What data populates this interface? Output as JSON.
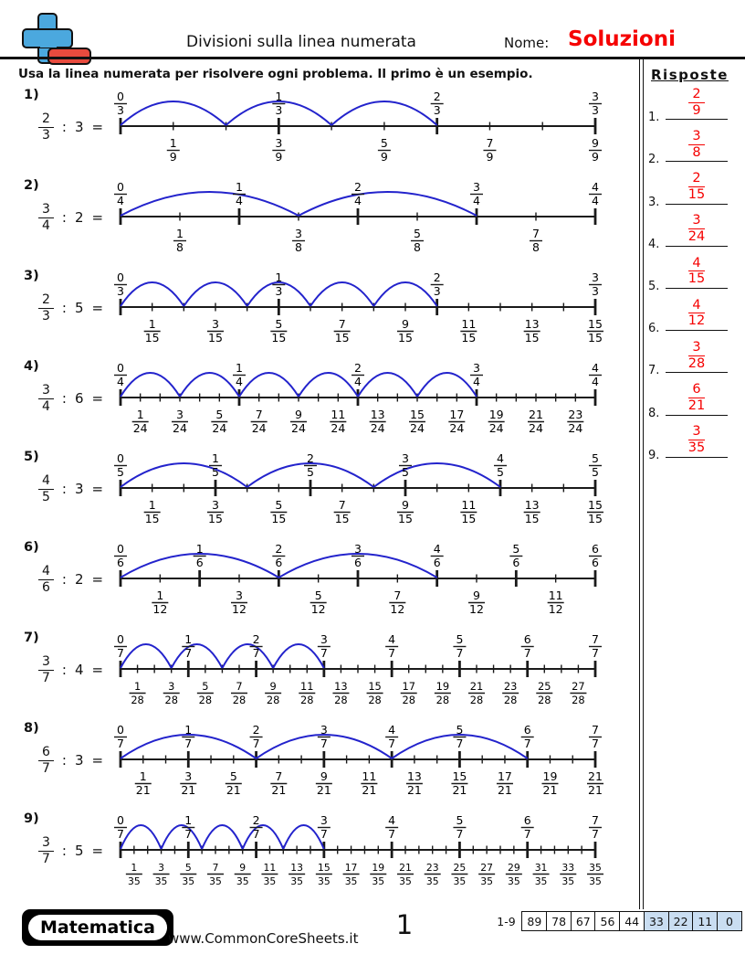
{
  "header": {
    "title": "Divisioni sulla linea numerata",
    "name_label": "Nome:",
    "name_value": "Soluzioni"
  },
  "instructions": "Usa la linea numerata per risolvere ogni problema. Il primo è un esempio.",
  "colors": {
    "arc_blue": "#2323cc",
    "answer_red": "#f50000",
    "score_highlight": "#c9ddf1",
    "logo_plus_blue": "#4ba8de",
    "logo_minus_red": "#e84b3e"
  },
  "problems": [
    {
      "label": "1)",
      "num": "2",
      "den": "3",
      "colon": ":",
      "divisor": "3",
      "equals": "=",
      "sub": 9,
      "hops": 3,
      "span": 2,
      "top": [
        "0/3",
        "1/3",
        "2/3",
        "3/3"
      ],
      "bottom": [
        "1/9",
        "3/9",
        "5/9",
        "7/9",
        "9/9"
      ]
    },
    {
      "label": "2)",
      "num": "3",
      "den": "4",
      "colon": ":",
      "divisor": "2",
      "equals": "=",
      "sub": 8,
      "hops": 2,
      "span": 3,
      "top": [
        "0/4",
        "1/4",
        "2/4",
        "3/4",
        "4/4"
      ],
      "bottom": [
        "1/8",
        "3/8",
        "5/8",
        "7/8"
      ]
    },
    {
      "label": "3)",
      "num": "2",
      "den": "3",
      "colon": ":",
      "divisor": "5",
      "equals": "=",
      "sub": 15,
      "hops": 5,
      "span": 2,
      "top": [
        "0/3",
        "1/3",
        "2/3",
        "3/3"
      ],
      "bottom": [
        "1/15",
        "3/15",
        "5/15",
        "7/15",
        "9/15",
        "11/15",
        "13/15",
        "15/15"
      ]
    },
    {
      "label": "4)",
      "num": "3",
      "den": "4",
      "colon": ":",
      "divisor": "6",
      "equals": "=",
      "sub": 24,
      "hops": 6,
      "span": 3,
      "top": [
        "0/4",
        "1/4",
        "2/4",
        "3/4",
        "4/4"
      ],
      "bottom": [
        "1/24",
        "3/24",
        "5/24",
        "7/24",
        "9/24",
        "11/24",
        "13/24",
        "15/24",
        "17/24",
        "19/24",
        "21/24",
        "23/24"
      ]
    },
    {
      "label": "5)",
      "num": "4",
      "den": "5",
      "colon": ":",
      "divisor": "3",
      "equals": "=",
      "sub": 15,
      "hops": 3,
      "span": 4,
      "top": [
        "0/5",
        "1/5",
        "2/5",
        "3/5",
        "4/5",
        "5/5"
      ],
      "bottom": [
        "1/15",
        "3/15",
        "5/15",
        "7/15",
        "9/15",
        "11/15",
        "13/15",
        "15/15"
      ]
    },
    {
      "label": "6)",
      "num": "4",
      "den": "6",
      "colon": ":",
      "divisor": "2",
      "equals": "=",
      "sub": 12,
      "hops": 2,
      "span": 4,
      "top": [
        "0/6",
        "1/6",
        "2/6",
        "3/6",
        "4/6",
        "5/6",
        "6/6"
      ],
      "bottom": [
        "1/12",
        "3/12",
        "5/12",
        "7/12",
        "9/12",
        "11/12"
      ]
    },
    {
      "label": "7)",
      "num": "3",
      "den": "7",
      "colon": ":",
      "divisor": "4",
      "equals": "=",
      "sub": 28,
      "hops": 4,
      "span": 3,
      "top": [
        "0/7",
        "1/7",
        "2/7",
        "3/7",
        "4/7",
        "5/7",
        "6/7",
        "7/7"
      ],
      "bottom": [
        "1/28",
        "3/28",
        "5/28",
        "7/28",
        "9/28",
        "11/28",
        "13/28",
        "15/28",
        "17/28",
        "19/28",
        "21/28",
        "23/28",
        "25/28",
        "27/28"
      ]
    },
    {
      "label": "8)",
      "num": "6",
      "den": "7",
      "colon": ":",
      "divisor": "3",
      "equals": "=",
      "sub": 21,
      "hops": 3,
      "span": 6,
      "top": [
        "0/7",
        "1/7",
        "2/7",
        "3/7",
        "4/7",
        "5/7",
        "6/7",
        "7/7"
      ],
      "bottom": [
        "1/21",
        "3/21",
        "5/21",
        "7/21",
        "9/21",
        "11/21",
        "13/21",
        "15/21",
        "17/21",
        "19/21",
        "21/21"
      ]
    },
    {
      "label": "9)",
      "num": "3",
      "den": "7",
      "colon": ":",
      "divisor": "5",
      "equals": "=",
      "sub": 35,
      "hops": 5,
      "span": 3,
      "top": [
        "0/7",
        "1/7",
        "2/7",
        "3/7",
        "4/7",
        "5/7",
        "6/7",
        "7/7"
      ],
      "bottom": [
        "1/35",
        "3/35",
        "5/35",
        "7/35",
        "9/35",
        "11/35",
        "13/35",
        "15/35",
        "17/35",
        "19/35",
        "21/35",
        "23/35",
        "25/35",
        "27/35",
        "29/35",
        "31/35",
        "33/35",
        "35/35"
      ]
    }
  ],
  "answers": {
    "title": "Risposte",
    "items": [
      {
        "n": "1.",
        "num": "2",
        "den": "9"
      },
      {
        "n": "2.",
        "num": "3",
        "den": "8"
      },
      {
        "n": "3.",
        "num": "2",
        "den": "15"
      },
      {
        "n": "4.",
        "num": "3",
        "den": "24"
      },
      {
        "n": "5.",
        "num": "4",
        "den": "15"
      },
      {
        "n": "6.",
        "num": "4",
        "den": "12"
      },
      {
        "n": "7.",
        "num": "3",
        "den": "28"
      },
      {
        "n": "8.",
        "num": "6",
        "den": "21"
      },
      {
        "n": "9.",
        "num": "3",
        "den": "35"
      }
    ]
  },
  "footer": {
    "brand": "Matematica",
    "site": "www.CommonCoreSheets.it",
    "page_number": "1",
    "score_range": "1-9",
    "score_cells": [
      "89",
      "78",
      "67",
      "56",
      "44",
      "33",
      "22",
      "11",
      "0"
    ],
    "score_highlight_count": 4
  }
}
